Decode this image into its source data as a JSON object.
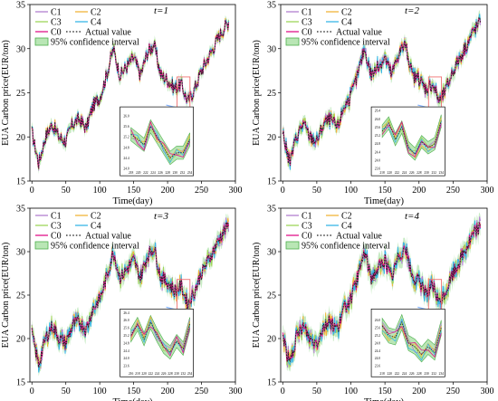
{
  "figure": {
    "legend": {
      "series_labels": [
        "C1",
        "C2",
        "C3",
        "C4",
        "C0"
      ],
      "actual_label": "Actual value",
      "band_label": "95% confidence interval"
    },
    "colors": {
      "C1": "#b27fd0",
      "C2": "#f2b53a",
      "C3": "#9fd55a",
      "C4": "#39b6e6",
      "C0": "#e0148a",
      "actual": "#222222",
      "band_fill": "#b9e6b5",
      "band_stroke": "#4cae4c",
      "highlight_box": "#f07070",
      "arrow": "#7fb0ff"
    }
  },
  "chart_data": [
    {
      "type": "line",
      "label": "t=1",
      "xlabel": "Time(day)",
      "ylabel": "EUA  Carbon price(EUR/ton)",
      "xlim": [
        -3,
        300
      ],
      "ylim": [
        15,
        35
      ],
      "xticks": [
        0,
        50,
        100,
        150,
        200,
        250,
        300
      ],
      "yticks": [
        15,
        20,
        25,
        30,
        35
      ],
      "series": [
        {
          "name": "Actual value",
          "x": [
            0,
            10,
            20,
            30,
            40,
            50,
            60,
            70,
            80,
            90,
            100,
            110,
            120,
            130,
            140,
            150,
            160,
            170,
            180,
            190,
            200,
            210,
            220,
            230,
            240,
            250,
            260,
            270,
            280,
            290
          ],
          "y": [
            20.5,
            17,
            20,
            21.5,
            20,
            19.5,
            21.5,
            22,
            21,
            23.5,
            24.5,
            27,
            30,
            27,
            28,
            29,
            27,
            29.5,
            30.5,
            27,
            26.5,
            25.5,
            26,
            24,
            25.5,
            27.5,
            29,
            30.5,
            32,
            33
          ]
        },
        {
          "name": "C1",
          "spread": 0.3
        },
        {
          "name": "C2",
          "spread": 0.3
        },
        {
          "name": "C3",
          "spread": 0.3
        },
        {
          "name": "C4",
          "spread": 0.3
        },
        {
          "name": "C0",
          "spread": 0.1
        }
      ],
      "inset": {
        "x_range": [
          218,
          234
        ],
        "y_range": [
          24,
          26.2
        ],
        "xticks": [
          218,
          220,
          222,
          224,
          226,
          228,
          230,
          232,
          234
        ],
        "yticks": [
          24.0,
          24.4,
          24.8,
          25.2,
          25.6,
          26.0
        ],
        "y": [
          25.3,
          25.1,
          24.9,
          25.6,
          25.2,
          24.8,
          24.4,
          24.6,
          24.6,
          25.1
        ]
      }
    },
    {
      "type": "line",
      "label": "t=2",
      "xlabel": "Time(day)",
      "ylabel": "EUA  Carbon price(EUR/ton)",
      "xlim": [
        -3,
        300
      ],
      "ylim": [
        15,
        35
      ],
      "xticks": [
        0,
        50,
        100,
        150,
        200,
        250,
        300
      ],
      "yticks": [
        15,
        20,
        25,
        30,
        35
      ],
      "series": [
        {
          "name": "Actual value",
          "x": [
            0,
            10,
            20,
            30,
            40,
            50,
            60,
            70,
            80,
            90,
            100,
            110,
            120,
            130,
            140,
            150,
            160,
            170,
            180,
            190,
            200,
            210,
            220,
            230,
            240,
            250,
            260,
            270,
            280,
            290
          ],
          "y": [
            20.5,
            17,
            20,
            21.5,
            20,
            19.5,
            21.5,
            22,
            21,
            23.5,
            24.5,
            27,
            30,
            27,
            28,
            29,
            27,
            29.5,
            30.5,
            27,
            26.5,
            25.5,
            26,
            24,
            25.5,
            27.5,
            29,
            30.5,
            32,
            33
          ]
        },
        {
          "name": "C1",
          "spread": 0.5
        },
        {
          "name": "C2",
          "spread": 0.5
        },
        {
          "name": "C3",
          "spread": 0.5
        },
        {
          "name": "C4",
          "spread": 0.5
        },
        {
          "name": "C0",
          "spread": 0.2
        }
      ],
      "inset": {
        "x_range": [
          218,
          234
        ],
        "y_range": [
          23.6,
          26.4
        ],
        "xticks": [
          218,
          220,
          222,
          224,
          226,
          228,
          230,
          232,
          234
        ],
        "yticks": [
          23.6,
          24.0,
          24.4,
          24.8,
          25.2,
          25.6,
          26.0,
          26.4
        ],
        "y": [
          25.4,
          25.8,
          25.0,
          25.6,
          24.6,
          24.3,
          24.9,
          24.6,
          24.8,
          25.9
        ]
      }
    },
    {
      "type": "line",
      "label": "t=3",
      "xlabel": "Time(day)",
      "ylabel": "EUA  Carbon price(EUR/ton)",
      "xlim": [
        -3,
        300
      ],
      "ylim": [
        15,
        35
      ],
      "xticks": [
        0,
        50,
        100,
        150,
        200,
        250,
        300
      ],
      "yticks": [
        15,
        20,
        25,
        30,
        35
      ],
      "series": [
        {
          "name": "Actual value",
          "x": [
            0,
            10,
            20,
            30,
            40,
            50,
            60,
            70,
            80,
            90,
            100,
            110,
            120,
            130,
            140,
            150,
            160,
            170,
            180,
            190,
            200,
            210,
            220,
            230,
            240,
            250,
            260,
            270,
            280,
            290
          ],
          "y": [
            20.5,
            17,
            20,
            21.5,
            20,
            19.5,
            21.5,
            22,
            21,
            23.5,
            24.5,
            27,
            30,
            27,
            28,
            29,
            27,
            29.5,
            30.5,
            27,
            26.5,
            25.5,
            26,
            24,
            25.5,
            27.5,
            29,
            30.5,
            32,
            33
          ]
        },
        {
          "name": "C1",
          "spread": 0.7
        },
        {
          "name": "C2",
          "spread": 0.7
        },
        {
          "name": "C3",
          "spread": 0.7
        },
        {
          "name": "C4",
          "spread": 0.7
        },
        {
          "name": "C0",
          "spread": 0.2
        }
      ],
      "inset": {
        "x_range": [
          216,
          234
        ],
        "y_range": [
          23.4,
          26.4
        ],
        "xticks": [
          216,
          218,
          220,
          222,
          224,
          226,
          228,
          230,
          232,
          234
        ],
        "yticks": [
          23.6,
          24.0,
          24.4,
          24.8,
          25.2,
          25.6,
          26.0,
          26.4
        ],
        "y": [
          25.2,
          25.8,
          25.0,
          25.9,
          25.2,
          24.6,
          24.3,
          24.9,
          24.5,
          25.8
        ]
      }
    },
    {
      "type": "line",
      "label": "t=4",
      "xlabel": "Time(day)",
      "ylabel": "EUA  Carbon price(EUR/ton)",
      "xlim": [
        -3,
        300
      ],
      "ylim": [
        15,
        35
      ],
      "xticks": [
        0,
        50,
        100,
        150,
        200,
        250,
        300
      ],
      "yticks": [
        15,
        20,
        25,
        30,
        35
      ],
      "series": [
        {
          "name": "Actual value",
          "x": [
            0,
            10,
            20,
            30,
            40,
            50,
            60,
            70,
            80,
            90,
            100,
            110,
            120,
            130,
            140,
            150,
            160,
            170,
            180,
            190,
            200,
            210,
            220,
            230,
            240,
            250,
            260,
            270,
            280,
            290
          ],
          "y": [
            20.5,
            17,
            20,
            21.5,
            20,
            19.5,
            21.5,
            22,
            21,
            23.5,
            24.5,
            27,
            30,
            27,
            28,
            29,
            27,
            29.5,
            30.5,
            27,
            26.5,
            25.5,
            26,
            24,
            25.5,
            27.5,
            29,
            30.5,
            32,
            33
          ]
        },
        {
          "name": "C1",
          "spread": 0.8
        },
        {
          "name": "C2",
          "spread": 0.8
        },
        {
          "name": "C3",
          "spread": 0.8
        },
        {
          "name": "C4",
          "spread": 0.8
        },
        {
          "name": "C0",
          "spread": 0.3
        }
      ],
      "inset": {
        "x_range": [
          218,
          234
        ],
        "y_range": [
          23.4,
          26.4
        ],
        "xticks": [
          218,
          220,
          222,
          224,
          226,
          228,
          230,
          232,
          234
        ],
        "yticks": [
          23.6,
          24.0,
          24.4,
          24.8,
          25.2,
          25.6,
          26.0
        ],
        "y": [
          25.7,
          25.2,
          25.1,
          25.9,
          24.8,
          24.6,
          24.2,
          24.6,
          24.3,
          25.6
        ]
      }
    }
  ]
}
